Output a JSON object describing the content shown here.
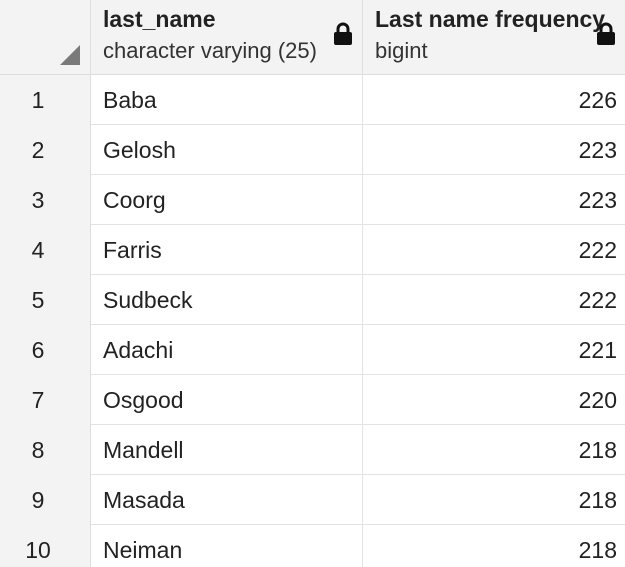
{
  "columns": [
    {
      "name": "last_name",
      "type": "character varying (25)",
      "icon": "lock-icon"
    },
    {
      "name": "Last name frequency",
      "type": "bigint",
      "icon": "lock-icon"
    }
  ],
  "rows": [
    {
      "num": "1",
      "last_name": "Baba",
      "frequency": "226"
    },
    {
      "num": "2",
      "last_name": "Gelosh",
      "frequency": "223"
    },
    {
      "num": "3",
      "last_name": "Coorg",
      "frequency": "223"
    },
    {
      "num": "4",
      "last_name": "Farris",
      "frequency": "222"
    },
    {
      "num": "5",
      "last_name": "Sudbeck",
      "frequency": "222"
    },
    {
      "num": "6",
      "last_name": "Adachi",
      "frequency": "221"
    },
    {
      "num": "7",
      "last_name": "Osgood",
      "frequency": "220"
    },
    {
      "num": "8",
      "last_name": "Mandell",
      "frequency": "218"
    },
    {
      "num": "9",
      "last_name": "Masada",
      "frequency": "218"
    },
    {
      "num": "10",
      "last_name": "Neiman",
      "frequency": "218"
    }
  ],
  "colors": {
    "header_bg": "#f3f3f3",
    "grid_line": "#dddddd",
    "text": "#222222"
  }
}
